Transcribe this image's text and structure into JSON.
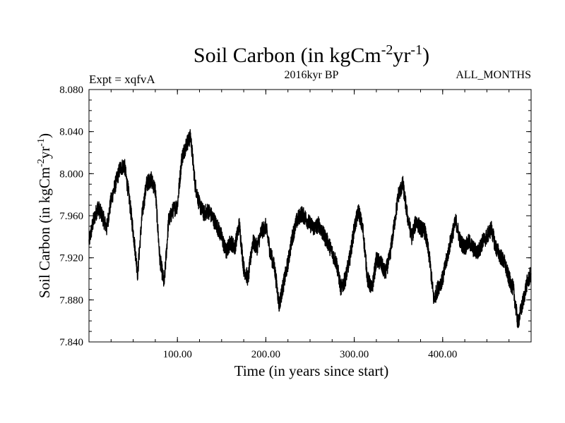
{
  "chart_data": {
    "type": "line",
    "title": "Soil Carbon (in kgCm",
    "title_sup1": "-2",
    "title_mid": "yr",
    "title_sup2": "-1",
    "title_end": ")",
    "subtitle_left": "Expt = xqfvA",
    "subtitle_center": "2016kyr BP",
    "subtitle_right": "ALL_MONTHS",
    "xlabel": "Time (in years since start)",
    "ylabel": "Soil Carbon (in kgCm",
    "ylabel_sup1": "-2",
    "ylabel_mid": "yr",
    "ylabel_sup2": "-1",
    "ylabel_end": ")",
    "xlim": [
      0,
      500
    ],
    "ylim": [
      7.84,
      8.08
    ],
    "x_ticks": [
      100,
      200,
      300,
      400
    ],
    "x_tick_labels": [
      "100.00",
      "200.00",
      "300.00",
      "400.00"
    ],
    "y_ticks": [
      7.84,
      7.88,
      7.92,
      7.96,
      8.0,
      8.04,
      8.08
    ],
    "y_tick_labels": [
      "7.840",
      "7.880",
      "7.920",
      "7.960",
      "8.000",
      "8.040",
      "8.080"
    ],
    "series": [
      {
        "name": "Soil Carbon",
        "color": "#000000",
        "x": [
          0,
          5,
          10,
          15,
          20,
          25,
          30,
          35,
          40,
          45,
          50,
          55,
          60,
          65,
          70,
          75,
          80,
          85,
          90,
          95,
          100,
          105,
          110,
          115,
          120,
          125,
          130,
          135,
          140,
          145,
          150,
          155,
          160,
          165,
          170,
          175,
          180,
          185,
          190,
          195,
          200,
          205,
          210,
          215,
          220,
          225,
          230,
          235,
          240,
          245,
          250,
          255,
          260,
          265,
          270,
          275,
          280,
          285,
          290,
          295,
          300,
          305,
          310,
          315,
          320,
          325,
          330,
          335,
          340,
          345,
          350,
          355,
          360,
          365,
          370,
          375,
          380,
          385,
          390,
          395,
          400,
          405,
          410,
          415,
          420,
          425,
          430,
          435,
          440,
          445,
          450,
          455,
          460,
          465,
          470,
          475,
          480,
          485,
          490,
          495,
          500
        ],
        "values": [
          7.935,
          7.955,
          7.968,
          7.96,
          7.948,
          7.975,
          7.99,
          8.005,
          8.008,
          7.98,
          7.945,
          7.905,
          7.96,
          7.99,
          7.995,
          7.985,
          7.92,
          7.895,
          7.955,
          7.965,
          7.97,
          8.015,
          8.028,
          8.035,
          7.99,
          7.97,
          7.962,
          7.965,
          7.958,
          7.95,
          7.94,
          7.925,
          7.935,
          7.93,
          7.952,
          7.91,
          7.9,
          7.935,
          7.93,
          7.945,
          7.95,
          7.925,
          7.91,
          7.875,
          7.895,
          7.915,
          7.94,
          7.955,
          7.962,
          7.958,
          7.952,
          7.948,
          7.952,
          7.942,
          7.935,
          7.925,
          7.915,
          7.89,
          7.9,
          7.92,
          7.948,
          7.965,
          7.945,
          7.9,
          7.89,
          7.918,
          7.915,
          7.905,
          7.92,
          7.95,
          7.98,
          7.99,
          7.96,
          7.94,
          7.955,
          7.948,
          7.945,
          7.92,
          7.88,
          7.892,
          7.9,
          7.92,
          7.94,
          7.955,
          7.935,
          7.93,
          7.935,
          7.928,
          7.925,
          7.935,
          7.94,
          7.948,
          7.93,
          7.922,
          7.915,
          7.9,
          7.89,
          7.858,
          7.875,
          7.895,
          7.905
        ]
      }
    ]
  }
}
